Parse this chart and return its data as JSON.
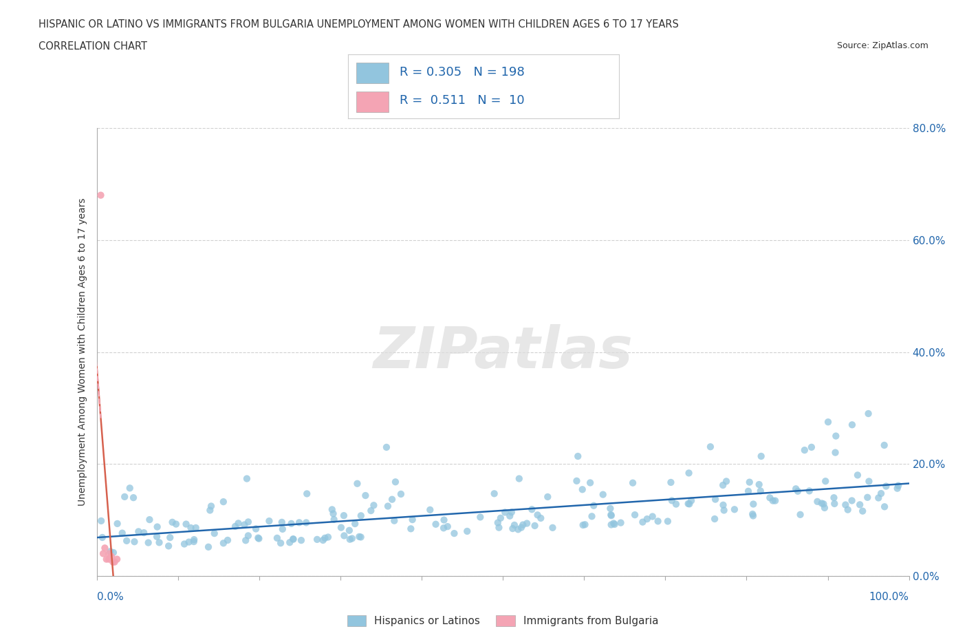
{
  "title_line1": "HISPANIC OR LATINO VS IMMIGRANTS FROM BULGARIA UNEMPLOYMENT AMONG WOMEN WITH CHILDREN AGES 6 TO 17 YEARS",
  "title_line2": "CORRELATION CHART",
  "source_text": "Source: ZipAtlas.com",
  "ylabel": "Unemployment Among Women with Children Ages 6 to 17 years",
  "xlim": [
    0,
    1.0
  ],
  "ylim": [
    0,
    0.8
  ],
  "xticks": [
    0.0,
    0.1,
    0.2,
    0.3,
    0.4,
    0.5,
    0.6,
    0.7,
    0.8,
    0.9,
    1.0
  ],
  "yticks": [
    0.0,
    0.2,
    0.4,
    0.6,
    0.8
  ],
  "right_ytick_labels": [
    "0.0%",
    "20.0%",
    "40.0%",
    "60.0%",
    "80.0%"
  ],
  "blue_color": "#92c5de",
  "pink_color": "#f4a4b4",
  "blue_line_color": "#2166ac",
  "pink_line_color": "#d6604d",
  "pink_line_dashed_color": "#f4a4b4",
  "R_blue": 0.305,
  "N_blue": 198,
  "R_pink": 0.511,
  "N_pink": 10,
  "watermark": "ZIPatlas",
  "grid_color": "#d0d0d0",
  "background_color": "#ffffff",
  "tick_color": "#555555",
  "label_color": "#2166ac",
  "title_color": "#333333"
}
